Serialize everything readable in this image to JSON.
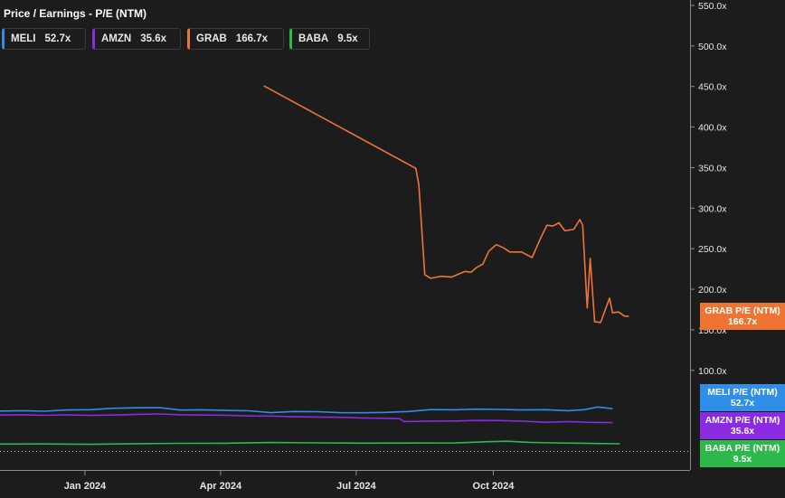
{
  "chart_data": {
    "type": "line",
    "title": "Price / Earnings - P/E (NTM)",
    "ylim": [
      0,
      555
    ],
    "y_ticks": [
      {
        "value": 100,
        "label": "100.0x"
      },
      {
        "value": 150,
        "label": "150.0x"
      },
      {
        "value": 200,
        "label": "200.0x"
      },
      {
        "value": 250,
        "label": "250.0x"
      },
      {
        "value": 300,
        "label": "300.0x"
      },
      {
        "value": 350,
        "label": "350.0x"
      },
      {
        "value": 400,
        "label": "400.0x"
      },
      {
        "value": 450,
        "label": "450.0x"
      },
      {
        "value": 500,
        "label": "500.0x"
      },
      {
        "value": 550,
        "label": "550.0x"
      }
    ],
    "x_ticks": [
      {
        "date": "2024-01-01",
        "label": "Jan 2024"
      },
      {
        "date": "2024-04-01",
        "label": "Apr 2024"
      },
      {
        "date": "2024-07-01",
        "label": "Jul 2024"
      },
      {
        "date": "2024-10-01",
        "label": "Oct 2024"
      }
    ],
    "xlim": [
      "2023-11-05",
      "2025-02-10"
    ],
    "grid": false,
    "legend_position": "top-left",
    "series": [
      {
        "name": "MELI",
        "legend_label": "MELI",
        "legend_value": "52.7x",
        "tag_name": "MELI P/E (NTM)",
        "tag_value": "52.7x",
        "color": "#2f8fe8",
        "points": [
          [
            "2023-11-05",
            49.8
          ],
          [
            "2023-11-20",
            50.3
          ],
          [
            "2023-12-05",
            49.6
          ],
          [
            "2023-12-20",
            51.2
          ],
          [
            "2024-01-05",
            51.5
          ],
          [
            "2024-01-20",
            53.3
          ],
          [
            "2024-02-05",
            53.8
          ],
          [
            "2024-02-20",
            54.1
          ],
          [
            "2024-03-05",
            51.0
          ],
          [
            "2024-03-20",
            51.4
          ],
          [
            "2024-04-05",
            50.6
          ],
          [
            "2024-04-20",
            50.2
          ],
          [
            "2024-05-05",
            47.8
          ],
          [
            "2024-05-20",
            49.3
          ],
          [
            "2024-06-05",
            49.0
          ],
          [
            "2024-06-20",
            47.8
          ],
          [
            "2024-07-05",
            47.7
          ],
          [
            "2024-07-20",
            48.1
          ],
          [
            "2024-08-05",
            49.3
          ],
          [
            "2024-08-20",
            51.6
          ],
          [
            "2024-09-05",
            51.4
          ],
          [
            "2024-09-20",
            52.2
          ],
          [
            "2024-10-05",
            51.8
          ],
          [
            "2024-10-20",
            51.2
          ],
          [
            "2024-11-05",
            51.5
          ],
          [
            "2024-11-20",
            50.3
          ],
          [
            "2024-12-01",
            51.5
          ],
          [
            "2024-12-10",
            54.8
          ],
          [
            "2024-12-20",
            52.7
          ]
        ]
      },
      {
        "name": "AMZN",
        "legend_label": "AMZN",
        "legend_value": "35.6x",
        "tag_name": "AMZN P/E (NTM)",
        "tag_value": "35.6x",
        "color": "#8a2be2",
        "points": [
          [
            "2023-11-05",
            44.9
          ],
          [
            "2023-11-20",
            45.3
          ],
          [
            "2023-12-05",
            44.6
          ],
          [
            "2023-12-20",
            45.1
          ],
          [
            "2024-01-05",
            44.5
          ],
          [
            "2024-01-20",
            44.9
          ],
          [
            "2024-02-05",
            45.8
          ],
          [
            "2024-02-20",
            46.2
          ],
          [
            "2024-03-05",
            45.3
          ],
          [
            "2024-03-20",
            44.9
          ],
          [
            "2024-04-05",
            44.7
          ],
          [
            "2024-04-20",
            43.8
          ],
          [
            "2024-05-05",
            43.7
          ],
          [
            "2024-05-20",
            42.8
          ],
          [
            "2024-06-05",
            42.5
          ],
          [
            "2024-06-20",
            42.1
          ],
          [
            "2024-07-05",
            41.4
          ],
          [
            "2024-07-20",
            40.9
          ],
          [
            "2024-07-30",
            40.5
          ],
          [
            "2024-08-02",
            36.9
          ],
          [
            "2024-08-20",
            37.4
          ],
          [
            "2024-09-05",
            37.6
          ],
          [
            "2024-09-20",
            38.2
          ],
          [
            "2024-10-05",
            38.1
          ],
          [
            "2024-10-20",
            37.3
          ],
          [
            "2024-11-05",
            36.0
          ],
          [
            "2024-11-20",
            36.8
          ],
          [
            "2024-12-05",
            35.9
          ],
          [
            "2024-12-20",
            35.6
          ]
        ]
      },
      {
        "name": "GRAB",
        "legend_label": "GRAB",
        "legend_value": "166.7x",
        "tag_name": "GRAB P/E (NTM)",
        "tag_value": "166.7x",
        "color": "#ee7433",
        "points": [
          [
            "2024-04-30",
            450.9
          ],
          [
            "2024-08-10",
            349.0
          ],
          [
            "2024-08-12",
            329.0
          ],
          [
            "2024-08-16",
            218.0
          ],
          [
            "2024-08-20",
            213.5
          ],
          [
            "2024-08-27",
            216.0
          ],
          [
            "2024-09-03",
            215.0
          ],
          [
            "2024-09-08",
            219.0
          ],
          [
            "2024-09-12",
            222.0
          ],
          [
            "2024-09-16",
            221.0
          ],
          [
            "2024-09-20",
            227.0
          ],
          [
            "2024-09-24",
            231.0
          ],
          [
            "2024-09-28",
            247.0
          ],
          [
            "2024-10-03",
            255.0
          ],
          [
            "2024-10-08",
            251.0
          ],
          [
            "2024-10-12",
            246.0
          ],
          [
            "2024-10-20",
            246.0
          ],
          [
            "2024-10-27",
            239.0
          ],
          [
            "2024-11-02",
            264.0
          ],
          [
            "2024-11-06",
            279.0
          ],
          [
            "2024-11-10",
            278.0
          ],
          [
            "2024-11-14",
            282.0
          ],
          [
            "2024-11-18",
            272.0
          ],
          [
            "2024-11-24",
            274.0
          ],
          [
            "2024-11-28",
            286.0
          ],
          [
            "2024-11-30",
            279.0
          ],
          [
            "2024-12-03",
            177.0
          ],
          [
            "2024-12-05",
            238.0
          ],
          [
            "2024-12-08",
            160.0
          ],
          [
            "2024-12-12",
            159.0
          ],
          [
            "2024-12-16",
            179.0
          ],
          [
            "2024-12-18",
            189.0
          ],
          [
            "2024-12-20",
            171.0
          ],
          [
            "2024-12-24",
            172.0
          ],
          [
            "2024-12-28",
            167.0
          ],
          [
            "2024-12-31",
            166.7
          ]
        ]
      },
      {
        "name": "BABA",
        "legend_label": "BABA",
        "legend_value": "9.5x",
        "tag_name": "BABA P/E (NTM)",
        "tag_value": "9.5x",
        "color": "#2eb84b",
        "points": [
          [
            "2023-11-05",
            9.1
          ],
          [
            "2023-12-05",
            9.3
          ],
          [
            "2024-01-05",
            8.8
          ],
          [
            "2024-02-05",
            9.6
          ],
          [
            "2024-03-05",
            10.0
          ],
          [
            "2024-04-05",
            10.1
          ],
          [
            "2024-05-05",
            11.0
          ],
          [
            "2024-06-05",
            10.6
          ],
          [
            "2024-07-05",
            10.2
          ],
          [
            "2024-08-05",
            10.4
          ],
          [
            "2024-09-05",
            10.5
          ],
          [
            "2024-09-25",
            11.9
          ],
          [
            "2024-10-10",
            12.6
          ],
          [
            "2024-10-25",
            11.3
          ],
          [
            "2024-11-10",
            10.6
          ],
          [
            "2024-11-25",
            10.2
          ],
          [
            "2024-12-10",
            9.8
          ],
          [
            "2024-12-25",
            9.5
          ]
        ]
      }
    ]
  }
}
